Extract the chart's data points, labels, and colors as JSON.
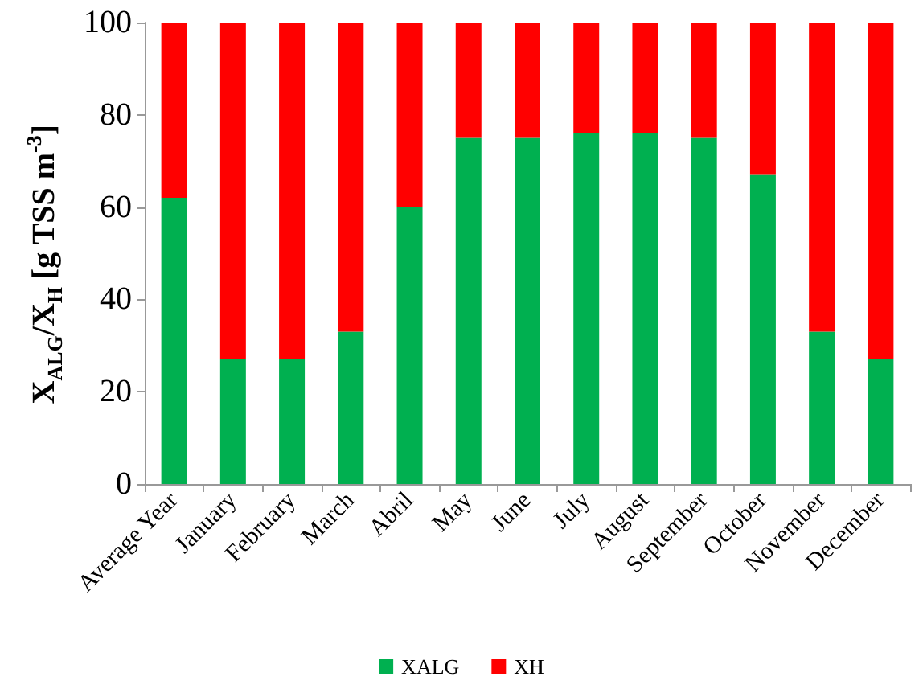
{
  "chart_data": {
    "type": "bar",
    "stacked": true,
    "ylabel": "X$_{ALG}$/X$_{H}$ [g TSS m$^{-3}$]",
    "categories": [
      "Average Year",
      "January",
      "February",
      "March",
      "Abril",
      "May",
      "June",
      "July",
      "August",
      "September",
      "October",
      "November",
      "December"
    ],
    "series": [
      {
        "name": "XALG",
        "color": "#00b050",
        "values": [
          62,
          27,
          27,
          33,
          60,
          75,
          75,
          76,
          76,
          75,
          67,
          33,
          27
        ]
      },
      {
        "name": "XH",
        "color": "#ff0000",
        "values": [
          38,
          73,
          73,
          67,
          40,
          25,
          25,
          24,
          24,
          25,
          33,
          67,
          73
        ]
      }
    ],
    "ylim": [
      0,
      100
    ],
    "yticks": [
      0,
      20,
      40,
      60,
      80,
      100
    ],
    "grid": false,
    "legend": "bottom"
  }
}
